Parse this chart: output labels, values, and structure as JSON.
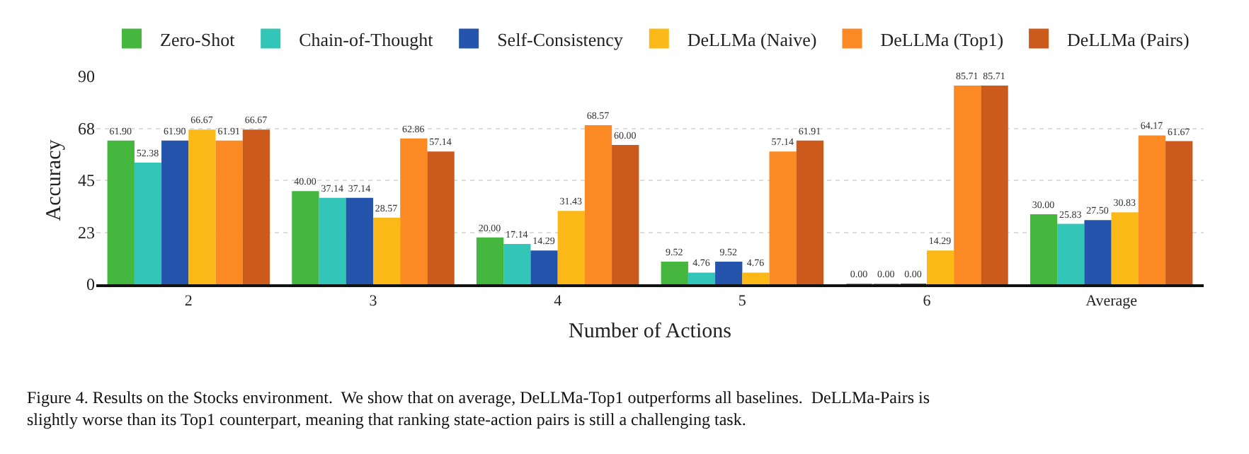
{
  "chart_data": {
    "type": "bar",
    "xlabel": "Number of Actions",
    "ylabel": "Accuracy",
    "categories": [
      "2",
      "3",
      "4",
      "5",
      "6",
      "Average"
    ],
    "series": [
      {
        "name": "Zero-Shot",
        "color": "#45b63e",
        "values": [
          61.9,
          40.0,
          20.0,
          9.52,
          0.0,
          30.0
        ],
        "value_labels": [
          "61.90",
          "40.00",
          "20.00",
          "9.52",
          "0.00",
          "30.00"
        ]
      },
      {
        "name": "Chain-of-Thought",
        "color": "#33c6b8",
        "values": [
          52.38,
          37.14,
          17.14,
          4.76,
          0.0,
          25.83
        ],
        "value_labels": [
          "52.38",
          "37.14",
          "17.14",
          "4.76",
          "0.00",
          "25.83"
        ]
      },
      {
        "name": "Self-Consistency",
        "color": "#2554ac",
        "values": [
          61.9,
          37.14,
          14.29,
          9.52,
          0.0,
          27.5
        ],
        "value_labels": [
          "61.90",
          "37.14",
          "14.29",
          "9.52",
          "0.00",
          "27.50"
        ]
      },
      {
        "name": "DeLLMa (Naive)",
        "color": "#fbb918",
        "values": [
          66.67,
          28.57,
          31.43,
          4.76,
          14.29,
          30.83
        ],
        "value_labels": [
          "66.67",
          "28.57",
          "31.43",
          "4.76",
          "14.29",
          "30.83"
        ]
      },
      {
        "name": "DeLLMa (Top1)",
        "color": "#fb8a24",
        "values": [
          61.91,
          62.86,
          68.57,
          57.14,
          85.71,
          64.17
        ],
        "value_labels": [
          "61.91",
          "62.86",
          "68.57",
          "57.14",
          "85.71",
          "64.17"
        ]
      },
      {
        "name": "DeLLMa (Pairs)",
        "color": "#cc5a1c",
        "values": [
          66.67,
          57.14,
          60.0,
          61.91,
          85.71,
          61.67
        ],
        "value_labels": [
          "66.67",
          "57.14",
          "60.00",
          "61.91",
          "85.71",
          "61.67"
        ]
      }
    ],
    "ylim": [
      0,
      90
    ],
    "yticks": [
      0,
      {
        "value": 22.5,
        "label": "23"
      },
      45,
      {
        "value": 67.5,
        "label": "68"
      },
      90
    ],
    "grid": "y",
    "legend": "top",
    "annotations": [
      "Figure 4. Results on the Stocks environment.  We show that on average, DeLLMa-Top1 outperforms all baselines.  DeLLMa-Pairs is\nslightly worse than its Top1 counterpart, meaning that ranking state-action pairs is still a challenging task."
    ]
  }
}
